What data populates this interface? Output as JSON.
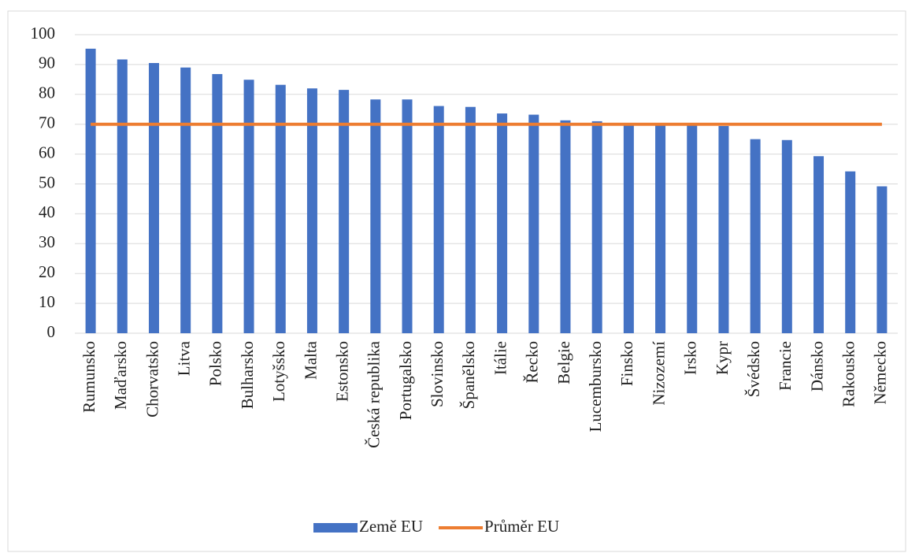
{
  "chart_data": {
    "type": "bar",
    "categories": [
      "Rumunsko",
      "Maďarsko",
      "Chorvatsko",
      "Litva",
      "Polsko",
      "Bulharsko",
      "Lotyšsko",
      "Malta",
      "Estonsko",
      "Česká republika",
      "Portugalsko",
      "Slovinsko",
      "Španělsko",
      "Itálie",
      "Řecko",
      "Belgie",
      "Lucembursko",
      "Finsko",
      "Nizozemí",
      "Irsko",
      "Kypr",
      "Švédsko",
      "Francie",
      "Dánsko",
      "Rakousko",
      "Německo"
    ],
    "series": [
      {
        "name": "Země EU",
        "color": "#4472c4",
        "type": "bar",
        "values": [
          95.3,
          91.7,
          90.5,
          89,
          86.8,
          84.9,
          83.2,
          82,
          81.5,
          78.3,
          78.3,
          76.1,
          75.8,
          73.6,
          73.2,
          71.3,
          71,
          70,
          69.8,
          69.6,
          69.4,
          65,
          64.7,
          59.3,
          54.2,
          49.2
        ]
      },
      {
        "name": "Průměr EU",
        "color": "#ed7d31",
        "type": "line",
        "values": [
          70,
          70,
          70,
          70,
          70,
          70,
          70,
          70,
          70,
          70,
          70,
          70,
          70,
          70,
          70,
          70,
          70,
          70,
          70,
          70,
          70,
          70,
          70,
          70,
          70,
          70
        ]
      }
    ],
    "ylim": [
      0,
      100
    ],
    "yticks": [
      0,
      10,
      20,
      30,
      40,
      50,
      60,
      70,
      80,
      90,
      100
    ],
    "grid": true,
    "legend": "bottom"
  }
}
